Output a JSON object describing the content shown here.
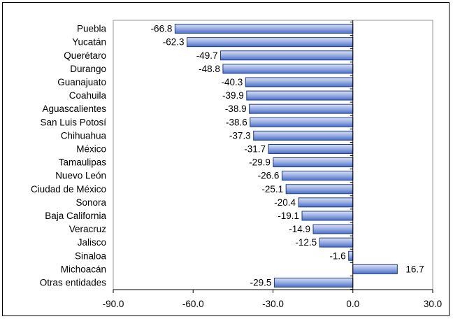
{
  "chart_data": {
    "type": "bar",
    "orientation": "horizontal",
    "title": "",
    "xlabel": "",
    "ylabel": "",
    "xlim": [
      -90,
      30
    ],
    "x_ticks": [
      "-90.0",
      "-60.0",
      "-30.0",
      "0.0",
      "30.0"
    ],
    "grid": false,
    "legend": "none",
    "categories": [
      "Puebla",
      "Yucatán",
      "Querétaro",
      "Durango",
      "Guanajuato",
      "Coahuila",
      "Aguascalientes",
      "San Luis Potosí",
      "Chihuahua",
      "México",
      "Tamaulipas",
      "Nuevo León",
      "Ciudad de México",
      "Sonora",
      "Baja California",
      "Veracruz",
      "Jalisco",
      "Sinaloa",
      "Michoacán",
      "Otras entidades"
    ],
    "values": [
      -66.8,
      -62.3,
      -49.7,
      -48.8,
      -40.3,
      -39.9,
      -38.9,
      -38.6,
      -37.3,
      -31.7,
      -29.9,
      -26.6,
      -25.1,
      -20.4,
      -19.1,
      -14.9,
      -12.5,
      -1.6,
      16.7,
      -29.5
    ],
    "data_labels": [
      "-66.8",
      "-62.3",
      "-49.7",
      "-48.8",
      "-40.3",
      "-39.9",
      "-38.9",
      "-38.6",
      "-37.3",
      "-31.7",
      "-29.9",
      "-26.6",
      "-25.1",
      "-20.4",
      "-19.1",
      "-14.9",
      "-12.5",
      "-1.6",
      "16.7",
      "-29.5"
    ],
    "colors": {
      "bar_light": "#dbe3f4",
      "bar_dark": "#4a6fc8",
      "bar_stroke": "#1f3a80",
      "axis": "#000000",
      "plot_border": "#999999"
    }
  }
}
